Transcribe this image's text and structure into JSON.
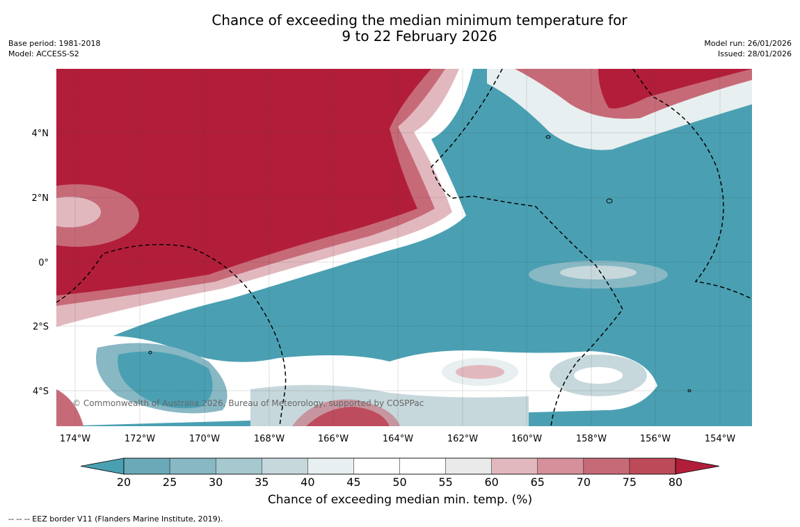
{
  "header": {
    "title_line1": "Chance of exceeding the median minimum temperature for",
    "title_line2": "9 to 22 February 2026",
    "base_period": "Base period: 1981-2018",
    "model": "Model: ACCESS-S2",
    "model_run": "Model run: 26/01/2026",
    "issued": "Issued: 28/01/2026"
  },
  "map": {
    "lat_labels": [
      "4°N",
      "2°N",
      "0°",
      "2°S",
      "4°S"
    ],
    "lon_labels": [
      "174°W",
      "172°W",
      "170°W",
      "168°W",
      "166°W",
      "164°W",
      "162°W",
      "160°W",
      "158°W",
      "156°W",
      "154°W"
    ],
    "copyright": "© Commonwealth of Australia 2026, Bureau of Meteorology, supported by COSPPac"
  },
  "colorbar": {
    "ticks": [
      "20",
      "25",
      "30",
      "35",
      "40",
      "45",
      "50",
      "55",
      "60",
      "65",
      "70",
      "75",
      "80"
    ],
    "colors": [
      "#6aaab8",
      "#88b8c4",
      "#a6c8cf",
      "#c6d8dc",
      "#e8eff0",
      "#ffffff",
      "#ffffff",
      "#eaeaea",
      "#e2b8bf",
      "#d5909b",
      "#c76a78",
      "#bd4a58"
    ],
    "under_color": "#4aa0b2",
    "over_color": "#b21e3a",
    "title": "Chance of exceeding median min. temp. (%)"
  },
  "footer": {
    "legend": "-- -- -- EEZ border V11 (Flanders Marine Institute, 2019)."
  }
}
